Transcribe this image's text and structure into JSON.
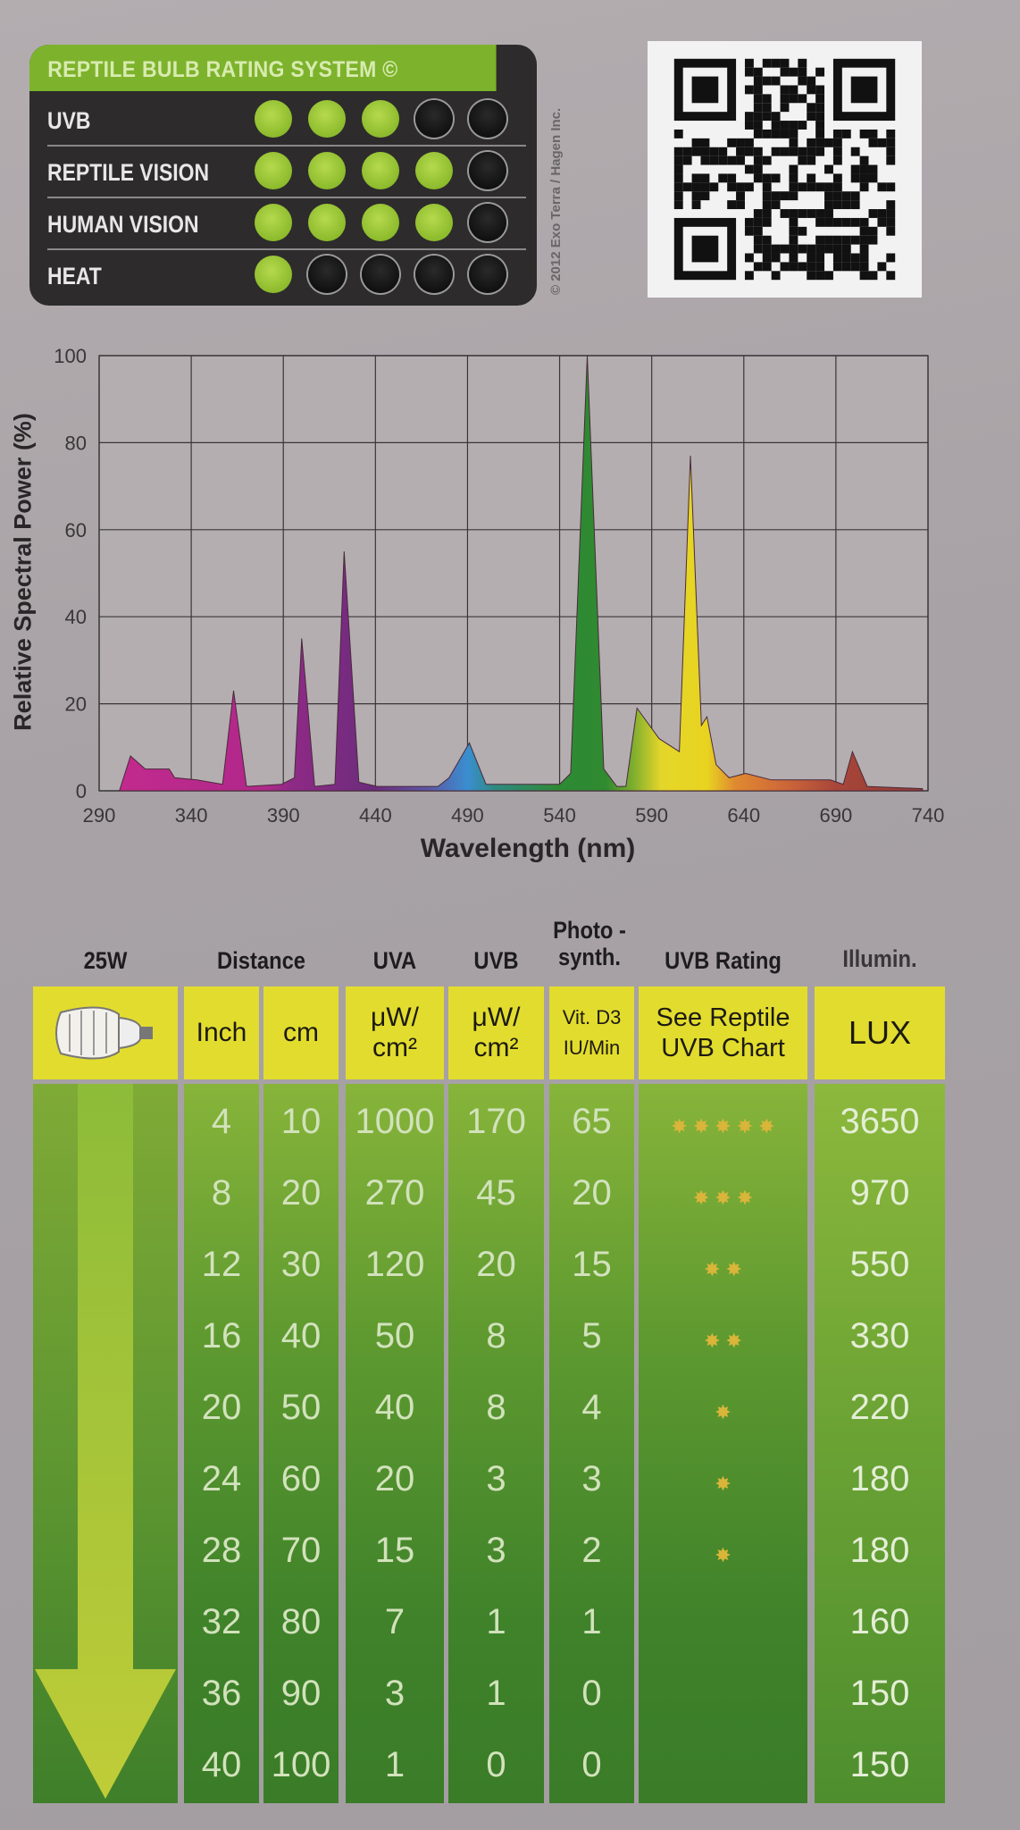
{
  "rating_panel": {
    "title": "REPTILE BULB RATING SYSTEM ©",
    "max": 5,
    "rows": [
      {
        "label": "UVB",
        "value": 3
      },
      {
        "label": "REPTILE VISION",
        "value": 4
      },
      {
        "label": "HUMAN VISION",
        "value": 4
      },
      {
        "label": "HEAT",
        "value": 1
      }
    ],
    "colors": {
      "on": "#8cbb2c",
      "off": "#111111",
      "header": "#7db32c"
    }
  },
  "copyright": "© 2012 Exo Terra / Hagen Inc.",
  "qr_code": "qr-code-icon",
  "chart_data": {
    "type": "area",
    "title": "",
    "xlabel": "Wavelength (nm)",
    "ylabel": "Relative Spectral Power (%)",
    "xlim": [
      290,
      740
    ],
    "ylim": [
      0,
      100
    ],
    "xticks": [
      290,
      340,
      390,
      440,
      490,
      540,
      590,
      640,
      690,
      740
    ],
    "yticks": [
      0,
      20,
      40,
      60,
      80,
      100
    ],
    "grid": true,
    "fill": "wavelength-colored spectrum",
    "points": [
      [
        301,
        0
      ],
      [
        307,
        8
      ],
      [
        315,
        5
      ],
      [
        328,
        5
      ],
      [
        331,
        3
      ],
      [
        343,
        2.5
      ],
      [
        357,
        1.5
      ],
      [
        363,
        23
      ],
      [
        370,
        1
      ],
      [
        389,
        1.5
      ],
      [
        396,
        3
      ],
      [
        400,
        35
      ],
      [
        407,
        1
      ],
      [
        418,
        1.5
      ],
      [
        423,
        55
      ],
      [
        431,
        2
      ],
      [
        441,
        1
      ],
      [
        474,
        1
      ],
      [
        480,
        3
      ],
      [
        491,
        11
      ],
      [
        500,
        1.5
      ],
      [
        540,
        1.5
      ],
      [
        546,
        4
      ],
      [
        555,
        100
      ],
      [
        564,
        5
      ],
      [
        571,
        1
      ],
      [
        576,
        1
      ],
      [
        582,
        19
      ],
      [
        594,
        12
      ],
      [
        605,
        9
      ],
      [
        611,
        77
      ],
      [
        617,
        15
      ],
      [
        620,
        17
      ],
      [
        625,
        6
      ],
      [
        632,
        3
      ],
      [
        641,
        4
      ],
      [
        655,
        2.5
      ],
      [
        671,
        2.5
      ],
      [
        687,
        2.5
      ],
      [
        694,
        1.5
      ],
      [
        699,
        9
      ],
      [
        707,
        1
      ],
      [
        737,
        0.5
      ]
    ]
  },
  "table": {
    "headers": [
      "25W",
      "Distance",
      "UVA",
      "UVB",
      "Photo -synth.",
      "UVB Rating",
      "Illumin."
    ],
    "subheaders": {
      "bulb": "cfl-bulb-icon",
      "inch": "Inch",
      "cm": "cm",
      "uva": "μW/ cm²",
      "uvb": "μW/ cm²",
      "photo": "Vit. D3 IU/Min",
      "rating": "See Reptile UVB Chart",
      "lux": "LUX"
    },
    "columns": [
      "inch",
      "cm",
      "uva",
      "uvb",
      "vitd3",
      "stars",
      "lux"
    ],
    "rows": [
      [
        4,
        10,
        1000,
        170,
        65,
        5,
        3650
      ],
      [
        8,
        20,
        270,
        45,
        20,
        3,
        970
      ],
      [
        12,
        30,
        120,
        20,
        15,
        2,
        550
      ],
      [
        16,
        40,
        50,
        8,
        5,
        2,
        330
      ],
      [
        20,
        50,
        40,
        8,
        4,
        1,
        220
      ],
      [
        24,
        60,
        20,
        3,
        3,
        1,
        180
      ],
      [
        28,
        70,
        15,
        3,
        2,
        1,
        180
      ],
      [
        32,
        80,
        7,
        1,
        1,
        0,
        160
      ],
      [
        36,
        90,
        3,
        1,
        0,
        0,
        150
      ],
      [
        40,
        100,
        1,
        0,
        0,
        0,
        150
      ]
    ],
    "star_glyph": "✸"
  }
}
